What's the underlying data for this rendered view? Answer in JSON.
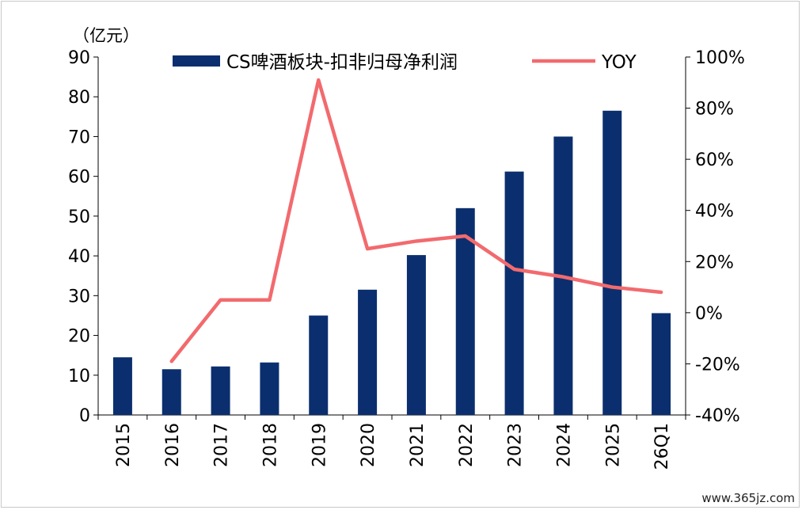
{
  "chart_data": {
    "type": "bar",
    "unit_label": "（亿元）",
    "categories": [
      "2015",
      "2016",
      "2017",
      "2018",
      "2019",
      "2020",
      "2021",
      "2022",
      "2023",
      "2024",
      "2025",
      "26Q1"
    ],
    "y_left": {
      "min": 0,
      "max": 90,
      "step": 10,
      "ticks": [
        "0",
        "10",
        "20",
        "30",
        "40",
        "50",
        "60",
        "70",
        "80",
        "90"
      ]
    },
    "y_right": {
      "min": -40,
      "max": 100,
      "step": 20,
      "ticks": [
        "-40%",
        "-20%",
        "0%",
        "20%",
        "40%",
        "60%",
        "80%",
        "100%"
      ]
    },
    "series": [
      {
        "name": "CS啤酒板块-扣非归母净利润",
        "type": "bar",
        "axis": "left",
        "color": "#0b2f6e",
        "values": [
          14.5,
          11.5,
          12.2,
          13.2,
          25.0,
          31.5,
          40.2,
          52.0,
          61.2,
          70.0,
          76.5,
          25.6
        ]
      },
      {
        "name": "YOY",
        "type": "line",
        "axis": "right",
        "color": "#f26a6e",
        "values": [
          null,
          -19,
          5,
          5,
          91,
          25,
          28,
          30,
          17,
          14,
          10,
          8
        ]
      }
    ],
    "legend_position": "top"
  },
  "watermark": "www.365jz.com"
}
